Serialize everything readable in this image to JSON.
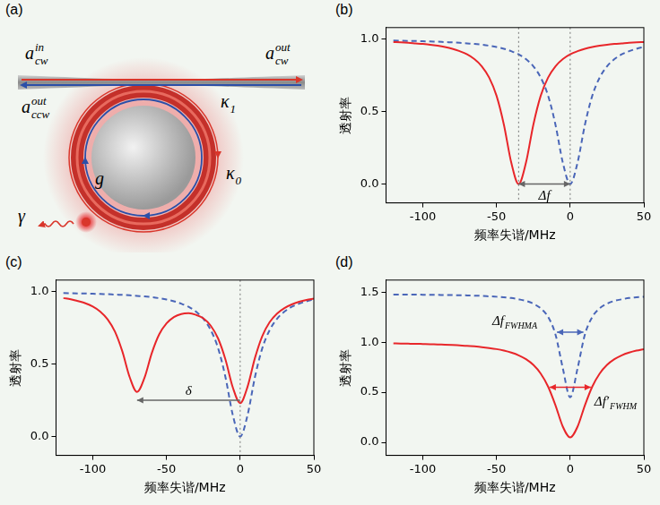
{
  "diagram": {
    "panel": "(a)",
    "labels": [
      {
        "text": "a",
        "sup": "in",
        "sub": "cw"
      },
      {
        "text": "a",
        "sup": "out",
        "sub": "cw"
      },
      {
        "text": "a",
        "sup": "out",
        "sub": "ccw"
      },
      {
        "text": "κ",
        "sub": "1"
      },
      {
        "text": "κ",
        "sub": "0"
      },
      {
        "text": "γ"
      },
      {
        "text": "g"
      }
    ]
  },
  "chart_data": [
    {
      "type": "line",
      "panel": "(b)",
      "x_label": "频率失谐/MHz",
      "y_label": "透射率",
      "xlim": [
        -125,
        50
      ],
      "xticks": [
        -100,
        -50,
        0,
        50
      ],
      "ylim": [
        -0.13,
        1.08
      ],
      "yticks": [
        {
          "value": 0,
          "label": "0.0"
        },
        {
          "value": 0.5,
          "label": "0.5"
        },
        {
          "value": 1,
          "label": "1.0"
        }
      ],
      "x": [
        -120,
        -115,
        -110,
        -105,
        -100,
        -95,
        -90,
        -85,
        -80,
        -75,
        -70,
        -65,
        -60,
        -55,
        -50,
        -45,
        -40,
        -35,
        -30,
        -25,
        -20,
        -15,
        -10,
        -5,
        0,
        5,
        10,
        15,
        20,
        25,
        30,
        35,
        40,
        45,
        50
      ],
      "series": [
        {
          "color": "#e8262a",
          "line_style": "solid",
          "values": [
            0.98,
            0.978,
            0.975,
            0.971,
            0.967,
            0.962,
            0.955,
            0.946,
            0.934,
            0.917,
            0.895,
            0.862,
            0.813,
            0.735,
            0.61,
            0.41,
            0.148,
            0,
            0.148,
            0.41,
            0.61,
            0.735,
            0.813,
            0.862,
            0.895,
            0.917,
            0.934,
            0.946,
            0.955,
            0.962,
            0.967,
            0.971,
            0.975,
            0.978,
            0.98
          ]
        },
        {
          "color": "#4a66b8",
          "line_style": "dashed",
          "values": [
            0.99,
            0.989,
            0.988,
            0.987,
            0.986,
            0.984,
            0.983,
            0.98,
            0.978,
            0.975,
            0.971,
            0.967,
            0.962,
            0.955,
            0.946,
            0.934,
            0.917,
            0.895,
            0.862,
            0.813,
            0.735,
            0.61,
            0.41,
            0.148,
            0,
            0.148,
            0.41,
            0.61,
            0.735,
            0.813,
            0.862,
            0.895,
            0.917,
            0.934,
            0.946
          ]
        }
      ],
      "vlines": [
        -35,
        0
      ],
      "annotations": [
        {
          "text": "Δf",
          "x_from": -35,
          "x_to": 0,
          "y": 0,
          "arrow": "both",
          "color": "#666666"
        }
      ]
    },
    {
      "type": "line",
      "panel": "(c)",
      "x_label": "频率失谐/MHz",
      "y_label": "透射率",
      "xlim": [
        -125,
        50
      ],
      "xticks": [
        -100,
        -50,
        0,
        50
      ],
      "ylim": [
        -0.13,
        1.08
      ],
      "yticks": [
        {
          "value": 0,
          "label": "0.0"
        },
        {
          "value": 0.5,
          "label": "0.5"
        },
        {
          "value": 1,
          "label": "1.0"
        }
      ],
      "x": [
        -120,
        -115,
        -110,
        -105,
        -100,
        -95,
        -90,
        -85,
        -80,
        -75,
        -70,
        -65,
        -60,
        -55,
        -50,
        -45,
        -40,
        -35,
        -30,
        -25,
        -20,
        -15,
        -10,
        -5,
        0,
        5,
        10,
        15,
        20,
        25,
        30,
        35,
        40,
        45,
        50
      ],
      "series": [
        {
          "color": "#e8262a",
          "line_style": "solid",
          "values": [
            0.956,
            0.948,
            0.935,
            0.92,
            0.897,
            0.863,
            0.809,
            0.724,
            0.588,
            0.41,
            0.308,
            0.404,
            0.576,
            0.705,
            0.781,
            0.825,
            0.846,
            0.851,
            0.84,
            0.816,
            0.765,
            0.677,
            0.532,
            0.339,
            0.231,
            0.344,
            0.542,
            0.694,
            0.79,
            0.849,
            0.887,
            0.912,
            0.93,
            0.943,
            0.952
          ]
        },
        {
          "color": "#4a66b8",
          "line_style": "dashed",
          "values": [
            0.99,
            0.989,
            0.988,
            0.987,
            0.986,
            0.984,
            0.983,
            0.98,
            0.978,
            0.975,
            0.971,
            0.967,
            0.962,
            0.955,
            0.946,
            0.934,
            0.917,
            0.895,
            0.862,
            0.813,
            0.735,
            0.61,
            0.41,
            0.148,
            0,
            0.148,
            0.41,
            0.61,
            0.735,
            0.813,
            0.862,
            0.895,
            0.917,
            0.934,
            0.946
          ]
        }
      ],
      "vlines": [
        0
      ],
      "annotations": [
        {
          "text": "δ",
          "x_from": 0,
          "x_to": -70,
          "y": 0.25,
          "arrow": "end",
          "color": "#666666"
        }
      ]
    },
    {
      "type": "line",
      "panel": "(d)",
      "x_label": "频率失谐/MHz",
      "y_label": "透射率",
      "xlim": [
        -125,
        50
      ],
      "xticks": [
        -100,
        -50,
        0,
        50
      ],
      "ylim": [
        -0.13,
        1.62
      ],
      "yticks": [
        {
          "value": 0,
          "label": "0.0"
        },
        {
          "value": 0.5,
          "label": "0.5"
        },
        {
          "value": 1,
          "label": "1.0"
        },
        {
          "value": 1.5,
          "label": "1.5"
        }
      ],
      "x": [
        -120,
        -115,
        -110,
        -105,
        -100,
        -95,
        -90,
        -85,
        -80,
        -75,
        -70,
        -65,
        -60,
        -55,
        -50,
        -45,
        -40,
        -35,
        -30,
        -25,
        -20,
        -15,
        -10,
        -5,
        0,
        5,
        10,
        15,
        20,
        25,
        30,
        35,
        40,
        45,
        50
      ],
      "series": [
        {
          "color": "#e8262a",
          "line_style": "solid",
          "values": [
            0.988,
            0.986,
            0.985,
            0.984,
            0.982,
            0.98,
            0.977,
            0.975,
            0.972,
            0.968,
            0.964,
            0.958,
            0.951,
            0.942,
            0.931,
            0.916,
            0.896,
            0.869,
            0.83,
            0.773,
            0.687,
            0.557,
            0.371,
            0.157,
            0.05,
            0.157,
            0.371,
            0.557,
            0.687,
            0.773,
            0.83,
            0.869,
            0.896,
            0.916,
            0.931
          ]
        },
        {
          "color": "#4a66b8",
          "line_style": "dashed",
          "values": [
            1.476,
            1.476,
            1.475,
            1.475,
            1.474,
            1.473,
            1.472,
            1.471,
            1.47,
            1.469,
            1.467,
            1.465,
            1.462,
            1.458,
            1.454,
            1.448,
            1.441,
            1.428,
            1.412,
            1.384,
            1.338,
            1.252,
            1.078,
            0.739,
            0.45,
            0.739,
            1.078,
            1.252,
            1.338,
            1.384,
            1.412,
            1.428,
            1.441,
            1.448,
            1.454
          ]
        }
      ],
      "annotations": [
        {
          "text": "Δf",
          "subscript": "FWHMA",
          "x_from": -9,
          "x_to": 9,
          "y": 1.1,
          "arrow": "both",
          "color": "#4a66b8"
        },
        {
          "text": "Δf′",
          "subscript": "FWHM",
          "x_from": -14,
          "x_to": 14,
          "y": 0.55,
          "arrow": "both",
          "color": "#e8262a"
        }
      ]
    }
  ]
}
